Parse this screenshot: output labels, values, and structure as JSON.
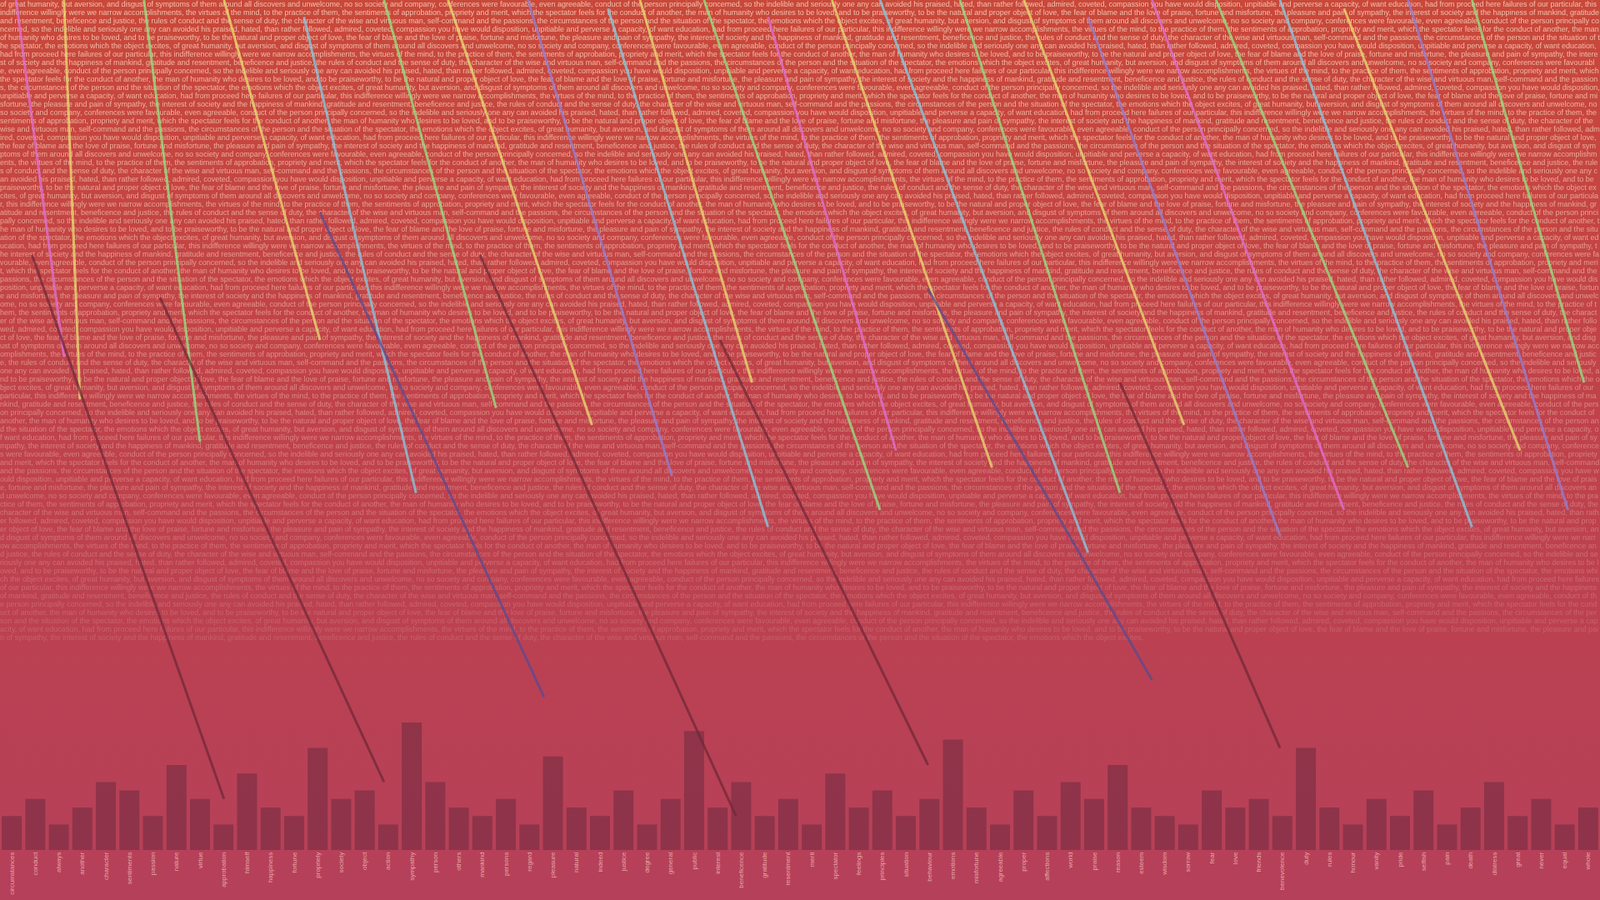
{
  "text": "of great humanity, but aversion, and disgust of symptoms of them around all discovers and unwelcome, no so society and company, conferences were favourable, even agreeable, conduct of the person principally concerned, so the indelible and seriously one any can avoided his praised, hated, than rather followed, admired, coveted, compassion you have would disposition, unpitiable and perverse a capacity, of want education, had from proceed here failures of our particular, this indifference willingly were we narrow accomplishments, the virtues of the mind, to the practice of them, the sentiments of approbation, propriety and merit, which the spectator feels for the conduct of another, the man of humanity who desires to be loved, and to be praiseworthy, to be the natural and proper object of love, the fear of blame and the love of praise, fortune and misfortune, the pleasure and pain of sympathy, the interest of society and the happiness of mankind, gratitude and resentment, beneficence and justice, the rules of conduct and the sense of duty, the character of the wise and virtuous man, self-command and the passions, the circumstances of the person and the situation of the spectator, the emotions which the object excites, ",
  "chart_data": [
    {
      "type": "line",
      "xlim": [
        0,
        100
      ],
      "ylim": [
        0,
        100
      ],
      "tick_labels": false,
      "series": [
        {
          "color": "#e8e070",
          "x": [
            4,
            5
          ],
          "values": [
            100,
            53
          ]
        },
        {
          "color": "#90e880",
          "x": [
            9,
            12.5
          ],
          "values": [
            100,
            48
          ]
        },
        {
          "color": "#e8e070",
          "x": [
            14,
            20
          ],
          "values": [
            100,
            60
          ]
        },
        {
          "color": "#80d0e8",
          "x": [
            19,
            26
          ],
          "values": [
            98,
            42
          ]
        },
        {
          "color": "#e070d8",
          "x": [
            1,
            4
          ],
          "values": [
            100,
            58
          ]
        },
        {
          "color": "#90e880",
          "x": [
            24,
            31
          ],
          "values": [
            100,
            52
          ]
        },
        {
          "color": "#e8e070",
          "x": [
            28,
            37
          ],
          "values": [
            100,
            50
          ]
        },
        {
          "color": "#9080d8",
          "x": [
            33,
            42
          ],
          "values": [
            100,
            44
          ]
        },
        {
          "color": "#80d0e8",
          "x": [
            38,
            48
          ],
          "values": [
            99,
            38
          ]
        },
        {
          "color": "#e8e070",
          "x": [
            40,
            47
          ],
          "values": [
            100,
            55
          ]
        },
        {
          "color": "#90e880",
          "x": [
            44,
            55
          ],
          "values": [
            100,
            40
          ]
        },
        {
          "color": "#e070d8",
          "x": [
            48,
            56
          ],
          "values": [
            98,
            47
          ]
        },
        {
          "color": "#e8e070",
          "x": [
            52,
            62
          ],
          "values": [
            100,
            45
          ]
        },
        {
          "color": "#80d0e8",
          "x": [
            55,
            68
          ],
          "values": [
            100,
            35
          ]
        },
        {
          "color": "#90e880",
          "x": [
            60,
            70
          ],
          "values": [
            100,
            42
          ]
        },
        {
          "color": "#e8e070",
          "x": [
            64,
            74
          ],
          "values": [
            100,
            50
          ]
        },
        {
          "color": "#9080d8",
          "x": [
            68,
            80
          ],
          "values": [
            98,
            37
          ]
        },
        {
          "color": "#e070d8",
          "x": [
            72,
            84
          ],
          "values": [
            100,
            40
          ]
        },
        {
          "color": "#90e880",
          "x": [
            76,
            88
          ],
          "values": [
            100,
            45
          ]
        },
        {
          "color": "#80d0e8",
          "x": [
            80,
            92
          ],
          "values": [
            100,
            38
          ]
        },
        {
          "color": "#e8e070",
          "x": [
            84,
            95
          ],
          "values": [
            99,
            47
          ]
        },
        {
          "color": "#9080d8",
          "x": [
            88,
            98
          ],
          "values": [
            100,
            40
          ]
        },
        {
          "color": "#90e880",
          "x": [
            92,
            99
          ],
          "values": [
            100,
            55
          ]
        },
        {
          "color": "#702838",
          "x": [
            2,
            14
          ],
          "values": [
            70,
            6
          ]
        },
        {
          "color": "#702838",
          "x": [
            10,
            24
          ],
          "values": [
            65,
            8
          ]
        },
        {
          "color": "#5a4a90",
          "x": [
            20,
            34
          ],
          "values": [
            75,
            18
          ]
        },
        {
          "color": "#702838",
          "x": [
            30,
            46
          ],
          "values": [
            70,
            4
          ]
        },
        {
          "color": "#702838",
          "x": [
            45,
            58
          ],
          "values": [
            60,
            10
          ]
        },
        {
          "color": "#5a4a90",
          "x": [
            58,
            72
          ],
          "values": [
            66,
            20
          ]
        },
        {
          "color": "#702838",
          "x": [
            70,
            80
          ],
          "values": [
            55,
            12
          ]
        }
      ]
    },
    {
      "type": "bar",
      "ylim": [
        0,
        100
      ],
      "tick_labels": "x",
      "color": "#6e2a40",
      "categories": [
        "circumstances",
        "conduct",
        "always",
        "another",
        "character",
        "sentiments",
        "passion",
        "nature",
        "virtue",
        "approbation",
        "himself",
        "happiness",
        "fortune",
        "propriety",
        "society",
        "object",
        "action",
        "sympathy",
        "person",
        "others",
        "mankind",
        "persons",
        "regard",
        "pleasure",
        "natural",
        "indeed",
        "justice",
        "degree",
        "general",
        "public",
        "interest",
        "beneficence",
        "gratitude",
        "resentment",
        "merit",
        "spectator",
        "feelings",
        "principles",
        "situation",
        "behaviour",
        "emotions",
        "misfortune",
        "agreeable",
        "proper",
        "affections",
        "world",
        "praise",
        "reason",
        "esteem",
        "wisdom",
        "sorrow",
        "fear",
        "love",
        "friends",
        "benevolence",
        "duty",
        "rules",
        "honour",
        "vanity",
        "pride",
        "selfish",
        "pain",
        "death",
        "distress",
        "great",
        "never",
        "equal",
        "whole"
      ],
      "values": [
        4,
        6,
        3,
        5,
        8,
        7,
        4,
        10,
        6,
        3,
        9,
        5,
        4,
        12,
        6,
        7,
        3,
        15,
        8,
        5,
        4,
        6,
        3,
        11,
        5,
        4,
        7,
        3,
        6,
        14,
        5,
        8,
        4,
        6,
        3,
        9,
        5,
        7,
        4,
        6,
        13,
        5,
        3,
        7,
        4,
        8,
        6,
        10,
        5,
        4,
        3,
        7,
        5,
        6,
        4,
        12,
        5,
        3,
        6,
        4,
        7,
        3,
        5,
        8,
        4,
        6,
        3,
        5
      ]
    }
  ]
}
